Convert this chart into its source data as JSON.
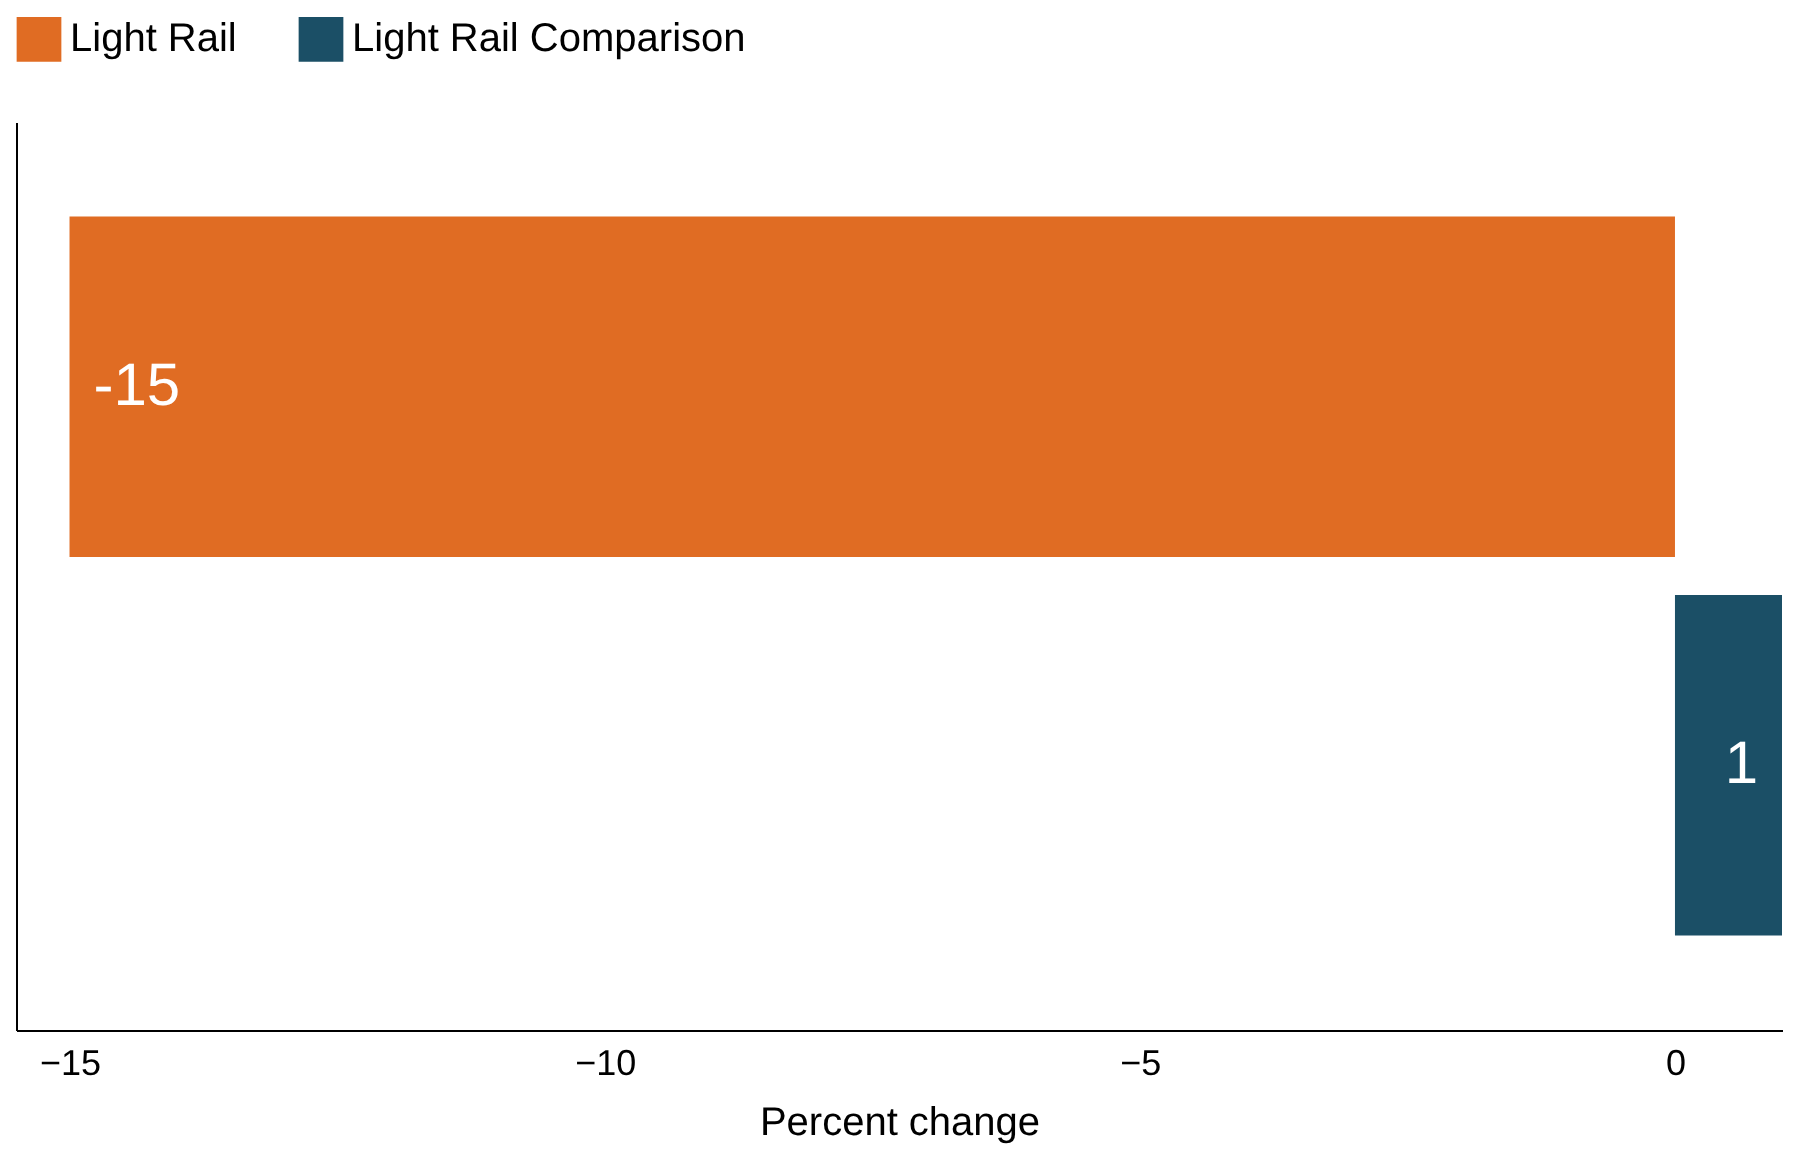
{
  "chart_data": {
    "type": "bar",
    "orientation": "horizontal",
    "categories": [
      null,
      null
    ],
    "series": [
      {
        "name": "Light Rail",
        "color": "#e06c23",
        "values": [
          -15,
          null
        ]
      },
      {
        "name": "Light Rail Comparison",
        "color": "#1b4f66",
        "values": [
          null,
          1
        ]
      }
    ],
    "xlabel": "Percent change",
    "xlim": [
      -15.5,
      1
    ],
    "xticks": [
      -15,
      -10,
      -5,
      0
    ],
    "grid": false,
    "legend": "top left",
    "data_labels": true
  }
}
